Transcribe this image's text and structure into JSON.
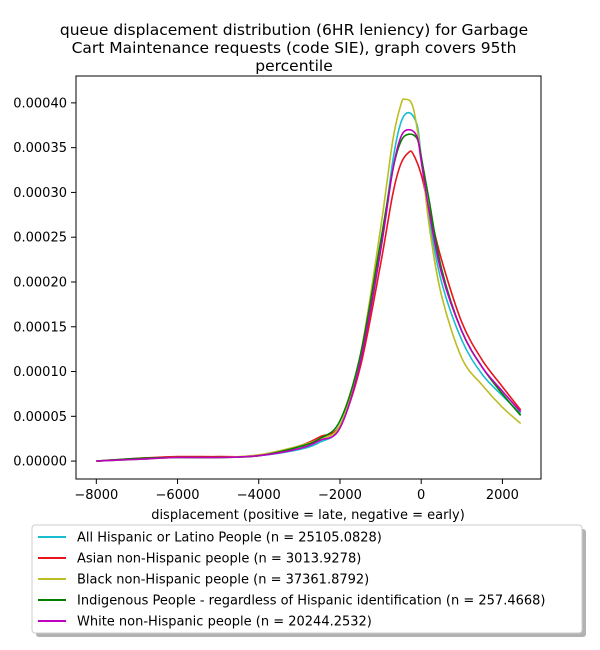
{
  "chart_data": {
    "type": "line",
    "title_lines": [
      "queue displacement distribution (6HR leniency) for Garbage",
      "Cart Maintenance  requests (code SIE), graph covers 95th",
      "percentile"
    ],
    "xlabel": "displacement (positive = late, negative = early)",
    "ylabel": "",
    "xlim": [
      -8500,
      2950
    ],
    "ylim": [
      -2e-05,
      0.00043
    ],
    "xticks": [
      -8000,
      -6000,
      -4000,
      -2000,
      0,
      2000
    ],
    "xtick_labels": [
      "−8000",
      "−6000",
      "−4000",
      "−2000",
      "0",
      "2000"
    ],
    "yticks": [
      0,
      5e-05,
      0.0001,
      0.00015,
      0.0002,
      0.00025,
      0.0003,
      0.00035,
      0.0004
    ],
    "ytick_labels": [
      "0.00000",
      "0.00005",
      "0.00010",
      "0.00015",
      "0.00020",
      "0.00025",
      "0.00030",
      "0.00035",
      "0.00040"
    ],
    "grid": false,
    "legend_position": "below",
    "series": [
      {
        "name": "All Hispanic or Latino People (n = 25105.0828)",
        "color": "#17becf",
        "x": [
          -8000,
          -7000,
          -6000,
          -5000,
          -4000,
          -3000,
          -2500,
          -2000,
          -1500,
          -1000,
          -700,
          -500,
          -300,
          -100,
          0,
          200,
          500,
          1000,
          1500,
          2000,
          2450
        ],
        "y": [
          0.0,
          2e-06,
          4e-06,
          4e-06,
          6e-06,
          1.3e-05,
          2.1e-05,
          3.8e-05,
          0.00011,
          0.000235,
          0.000335,
          0.000378,
          0.000389,
          0.000375,
          0.00034,
          0.00027,
          0.0002,
          0.000135,
          9.7e-05,
          7.3e-05,
          5.3e-05
        ]
      },
      {
        "name": "Asian non-Hispanic people (n = 3013.9278)",
        "color": "#e8151c",
        "x": [
          -8000,
          -7000,
          -6000,
          -5000,
          -4000,
          -3000,
          -2500,
          -2000,
          -1500,
          -1000,
          -700,
          -500,
          -300,
          -200,
          0,
          200,
          500,
          1000,
          1500,
          2000,
          2450
        ],
        "y": [
          0.0,
          3e-06,
          5e-06,
          5e-06,
          6e-06,
          1.7e-05,
          2.7e-05,
          4e-05,
          0.000105,
          0.00022,
          0.000298,
          0.000332,
          0.000345,
          0.000343,
          0.00032,
          0.00028,
          0.000225,
          0.000155,
          0.000113,
          8.3e-05,
          5.7e-05
        ]
      },
      {
        "name": "Black non-Hispanic people (n = 37361.8792)",
        "color": "#bcbd22",
        "x": [
          -8000,
          -7000,
          -6000,
          -5000,
          -4000,
          -3000,
          -2500,
          -2000,
          -1500,
          -1000,
          -700,
          -500,
          -400,
          -200,
          0,
          200,
          500,
          1000,
          1500,
          2000,
          2450
        ],
        "y": [
          0.0,
          2e-06,
          4e-06,
          4e-06,
          7e-06,
          1.7e-05,
          2.5e-05,
          4e-05,
          0.000118,
          0.00026,
          0.000358,
          0.000398,
          0.000404,
          0.000395,
          0.00034,
          0.000262,
          0.000185,
          0.000115,
          8.5e-05,
          6e-05,
          4.2e-05
        ]
      },
      {
        "name": "Indigenous People - regardless of Hispanic identification (n = 257.4668)",
        "color": "#008000",
        "x": [
          -8000,
          -7000,
          -6000,
          -5000,
          -4000,
          -3000,
          -2500,
          -2000,
          -1500,
          -1000,
          -700,
          -500,
          -300,
          -100,
          0,
          200,
          500,
          1000,
          1500,
          2000,
          2450
        ],
        "y": [
          0.0,
          3e-06,
          4e-06,
          4e-06,
          6e-06,
          1.6e-05,
          2.5e-05,
          4.5e-05,
          0.000118,
          0.000245,
          0.000325,
          0.000357,
          0.000365,
          0.00036,
          0.00034,
          0.00029,
          0.000215,
          0.000145,
          0.000105,
          7.5e-05,
          5.1e-05
        ]
      },
      {
        "name": "White non-Hispanic people (n = 20244.2532)",
        "color": "#bf00bf",
        "x": [
          -8000,
          -7000,
          -6000,
          -5000,
          -4000,
          -3000,
          -2500,
          -2000,
          -1500,
          -1000,
          -700,
          -500,
          -300,
          -100,
          0,
          200,
          500,
          1000,
          1500,
          2000,
          2450
        ],
        "y": [
          0.0,
          2e-06,
          4e-06,
          4e-06,
          6e-06,
          1.4e-05,
          2.3e-05,
          3.7e-05,
          0.00011,
          0.000235,
          0.000325,
          0.000362,
          0.00037,
          0.000362,
          0.000335,
          0.000278,
          0.00021,
          0.000145,
          0.000105,
          7.8e-05,
          5.5e-05
        ]
      }
    ]
  }
}
